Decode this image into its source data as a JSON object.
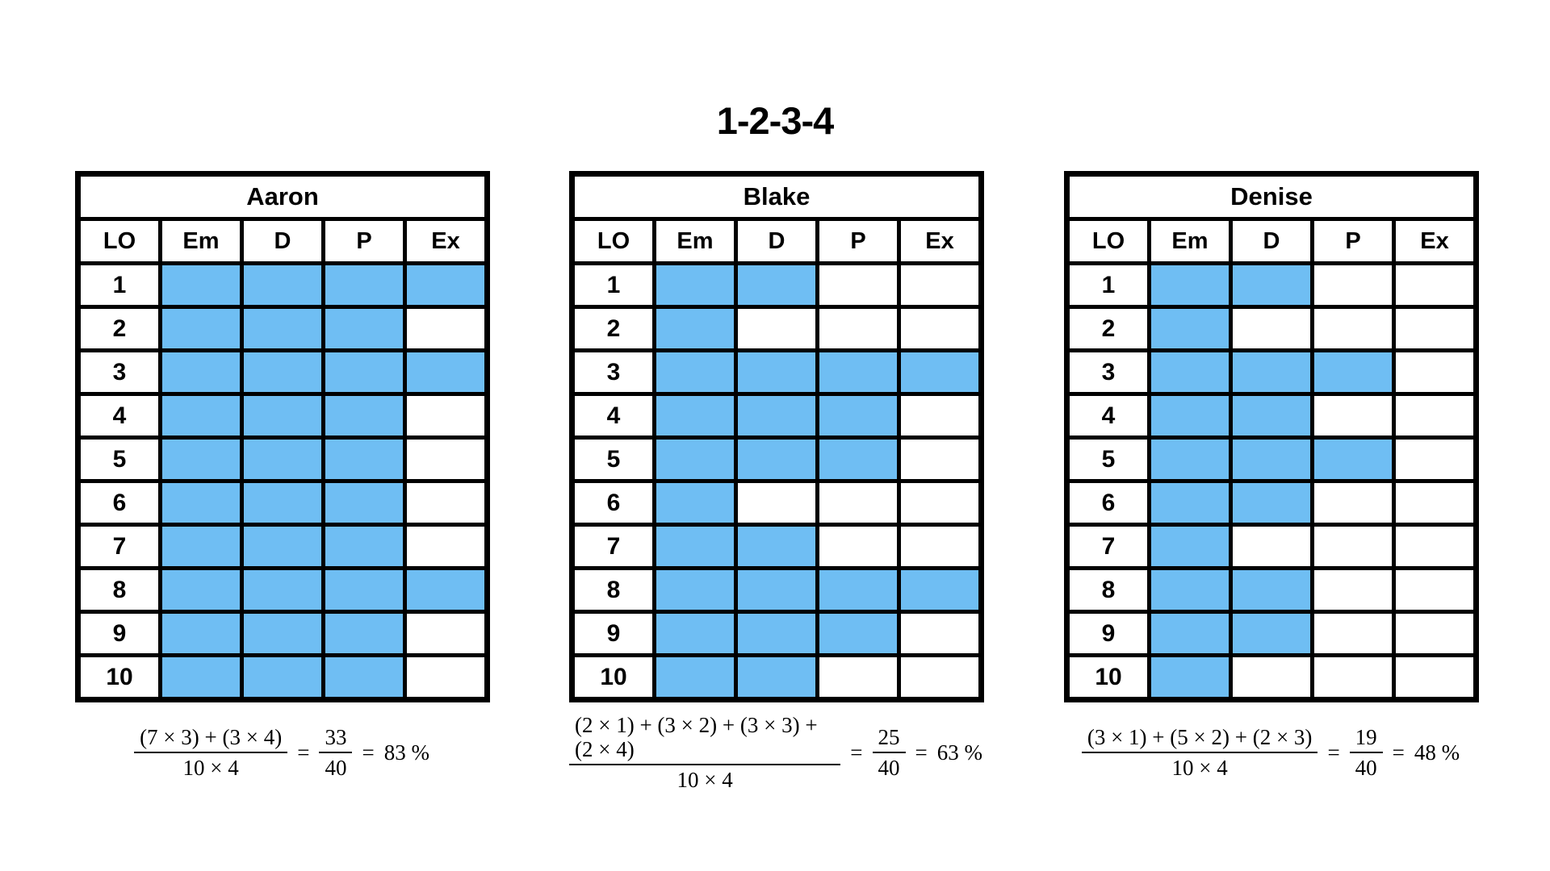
{
  "page_title": "1-2-3-4",
  "colors": {
    "cell_fill": "#6FBEF3",
    "grid_border": "#000000",
    "background": "#FFFFFF",
    "text": "#000000"
  },
  "chart_data": [
    {
      "type": "table",
      "title": "Aaron",
      "columns": [
        "LO",
        "Em",
        "D",
        "P",
        "Ex"
      ],
      "rows": [
        {
          "lo": "1",
          "filled": [
            1,
            1,
            1,
            1
          ]
        },
        {
          "lo": "2",
          "filled": [
            1,
            1,
            1,
            0
          ]
        },
        {
          "lo": "3",
          "filled": [
            1,
            1,
            1,
            1
          ]
        },
        {
          "lo": "4",
          "filled": [
            1,
            1,
            1,
            0
          ]
        },
        {
          "lo": "5",
          "filled": [
            1,
            1,
            1,
            0
          ]
        },
        {
          "lo": "6",
          "filled": [
            1,
            1,
            1,
            0
          ]
        },
        {
          "lo": "7",
          "filled": [
            1,
            1,
            1,
            0
          ]
        },
        {
          "lo": "8",
          "filled": [
            1,
            1,
            1,
            1
          ]
        },
        {
          "lo": "9",
          "filled": [
            1,
            1,
            1,
            0
          ]
        },
        {
          "lo": "10",
          "filled": [
            1,
            1,
            1,
            0
          ]
        }
      ],
      "formula": {
        "numerator": "(7 × 3) + (3 × 4)",
        "denominator": "10 × 4",
        "equals": "=",
        "sum": "33",
        "total": "40",
        "result": "83 %"
      }
    },
    {
      "type": "table",
      "title": "Blake",
      "columns": [
        "LO",
        "Em",
        "D",
        "P",
        "Ex"
      ],
      "rows": [
        {
          "lo": "1",
          "filled": [
            1,
            1,
            0,
            0
          ]
        },
        {
          "lo": "2",
          "filled": [
            1,
            0,
            0,
            0
          ]
        },
        {
          "lo": "3",
          "filled": [
            1,
            1,
            1,
            1
          ]
        },
        {
          "lo": "4",
          "filled": [
            1,
            1,
            1,
            0
          ]
        },
        {
          "lo": "5",
          "filled": [
            1,
            1,
            1,
            0
          ]
        },
        {
          "lo": "6",
          "filled": [
            1,
            0,
            0,
            0
          ]
        },
        {
          "lo": "7",
          "filled": [
            1,
            1,
            0,
            0
          ]
        },
        {
          "lo": "8",
          "filled": [
            1,
            1,
            1,
            1
          ]
        },
        {
          "lo": "9",
          "filled": [
            1,
            1,
            1,
            0
          ]
        },
        {
          "lo": "10",
          "filled": [
            1,
            1,
            0,
            0
          ]
        }
      ],
      "formula": {
        "numerator": "(2 × 1) + (3 × 2) + (3 × 3) + (2 × 4)",
        "denominator": "10 × 4",
        "equals": "=",
        "sum": "25",
        "total": "40",
        "result": "63 %"
      }
    },
    {
      "type": "table",
      "title": "Denise",
      "columns": [
        "LO",
        "Em",
        "D",
        "P",
        "Ex"
      ],
      "rows": [
        {
          "lo": "1",
          "filled": [
            1,
            1,
            0,
            0
          ]
        },
        {
          "lo": "2",
          "filled": [
            1,
            0,
            0,
            0
          ]
        },
        {
          "lo": "3",
          "filled": [
            1,
            1,
            1,
            0
          ]
        },
        {
          "lo": "4",
          "filled": [
            1,
            1,
            0,
            0
          ]
        },
        {
          "lo": "5",
          "filled": [
            1,
            1,
            1,
            0
          ]
        },
        {
          "lo": "6",
          "filled": [
            1,
            1,
            0,
            0
          ]
        },
        {
          "lo": "7",
          "filled": [
            1,
            0,
            0,
            0
          ]
        },
        {
          "lo": "8",
          "filled": [
            1,
            1,
            0,
            0
          ]
        },
        {
          "lo": "9",
          "filled": [
            1,
            1,
            0,
            0
          ]
        },
        {
          "lo": "10",
          "filled": [
            1,
            0,
            0,
            0
          ]
        }
      ],
      "formula": {
        "numerator": "(3 × 1) + (5 × 2) + (2 × 3)",
        "denominator": "10 × 4",
        "equals": "=",
        "sum": "19",
        "total": "40",
        "result": "48 %"
      }
    }
  ]
}
